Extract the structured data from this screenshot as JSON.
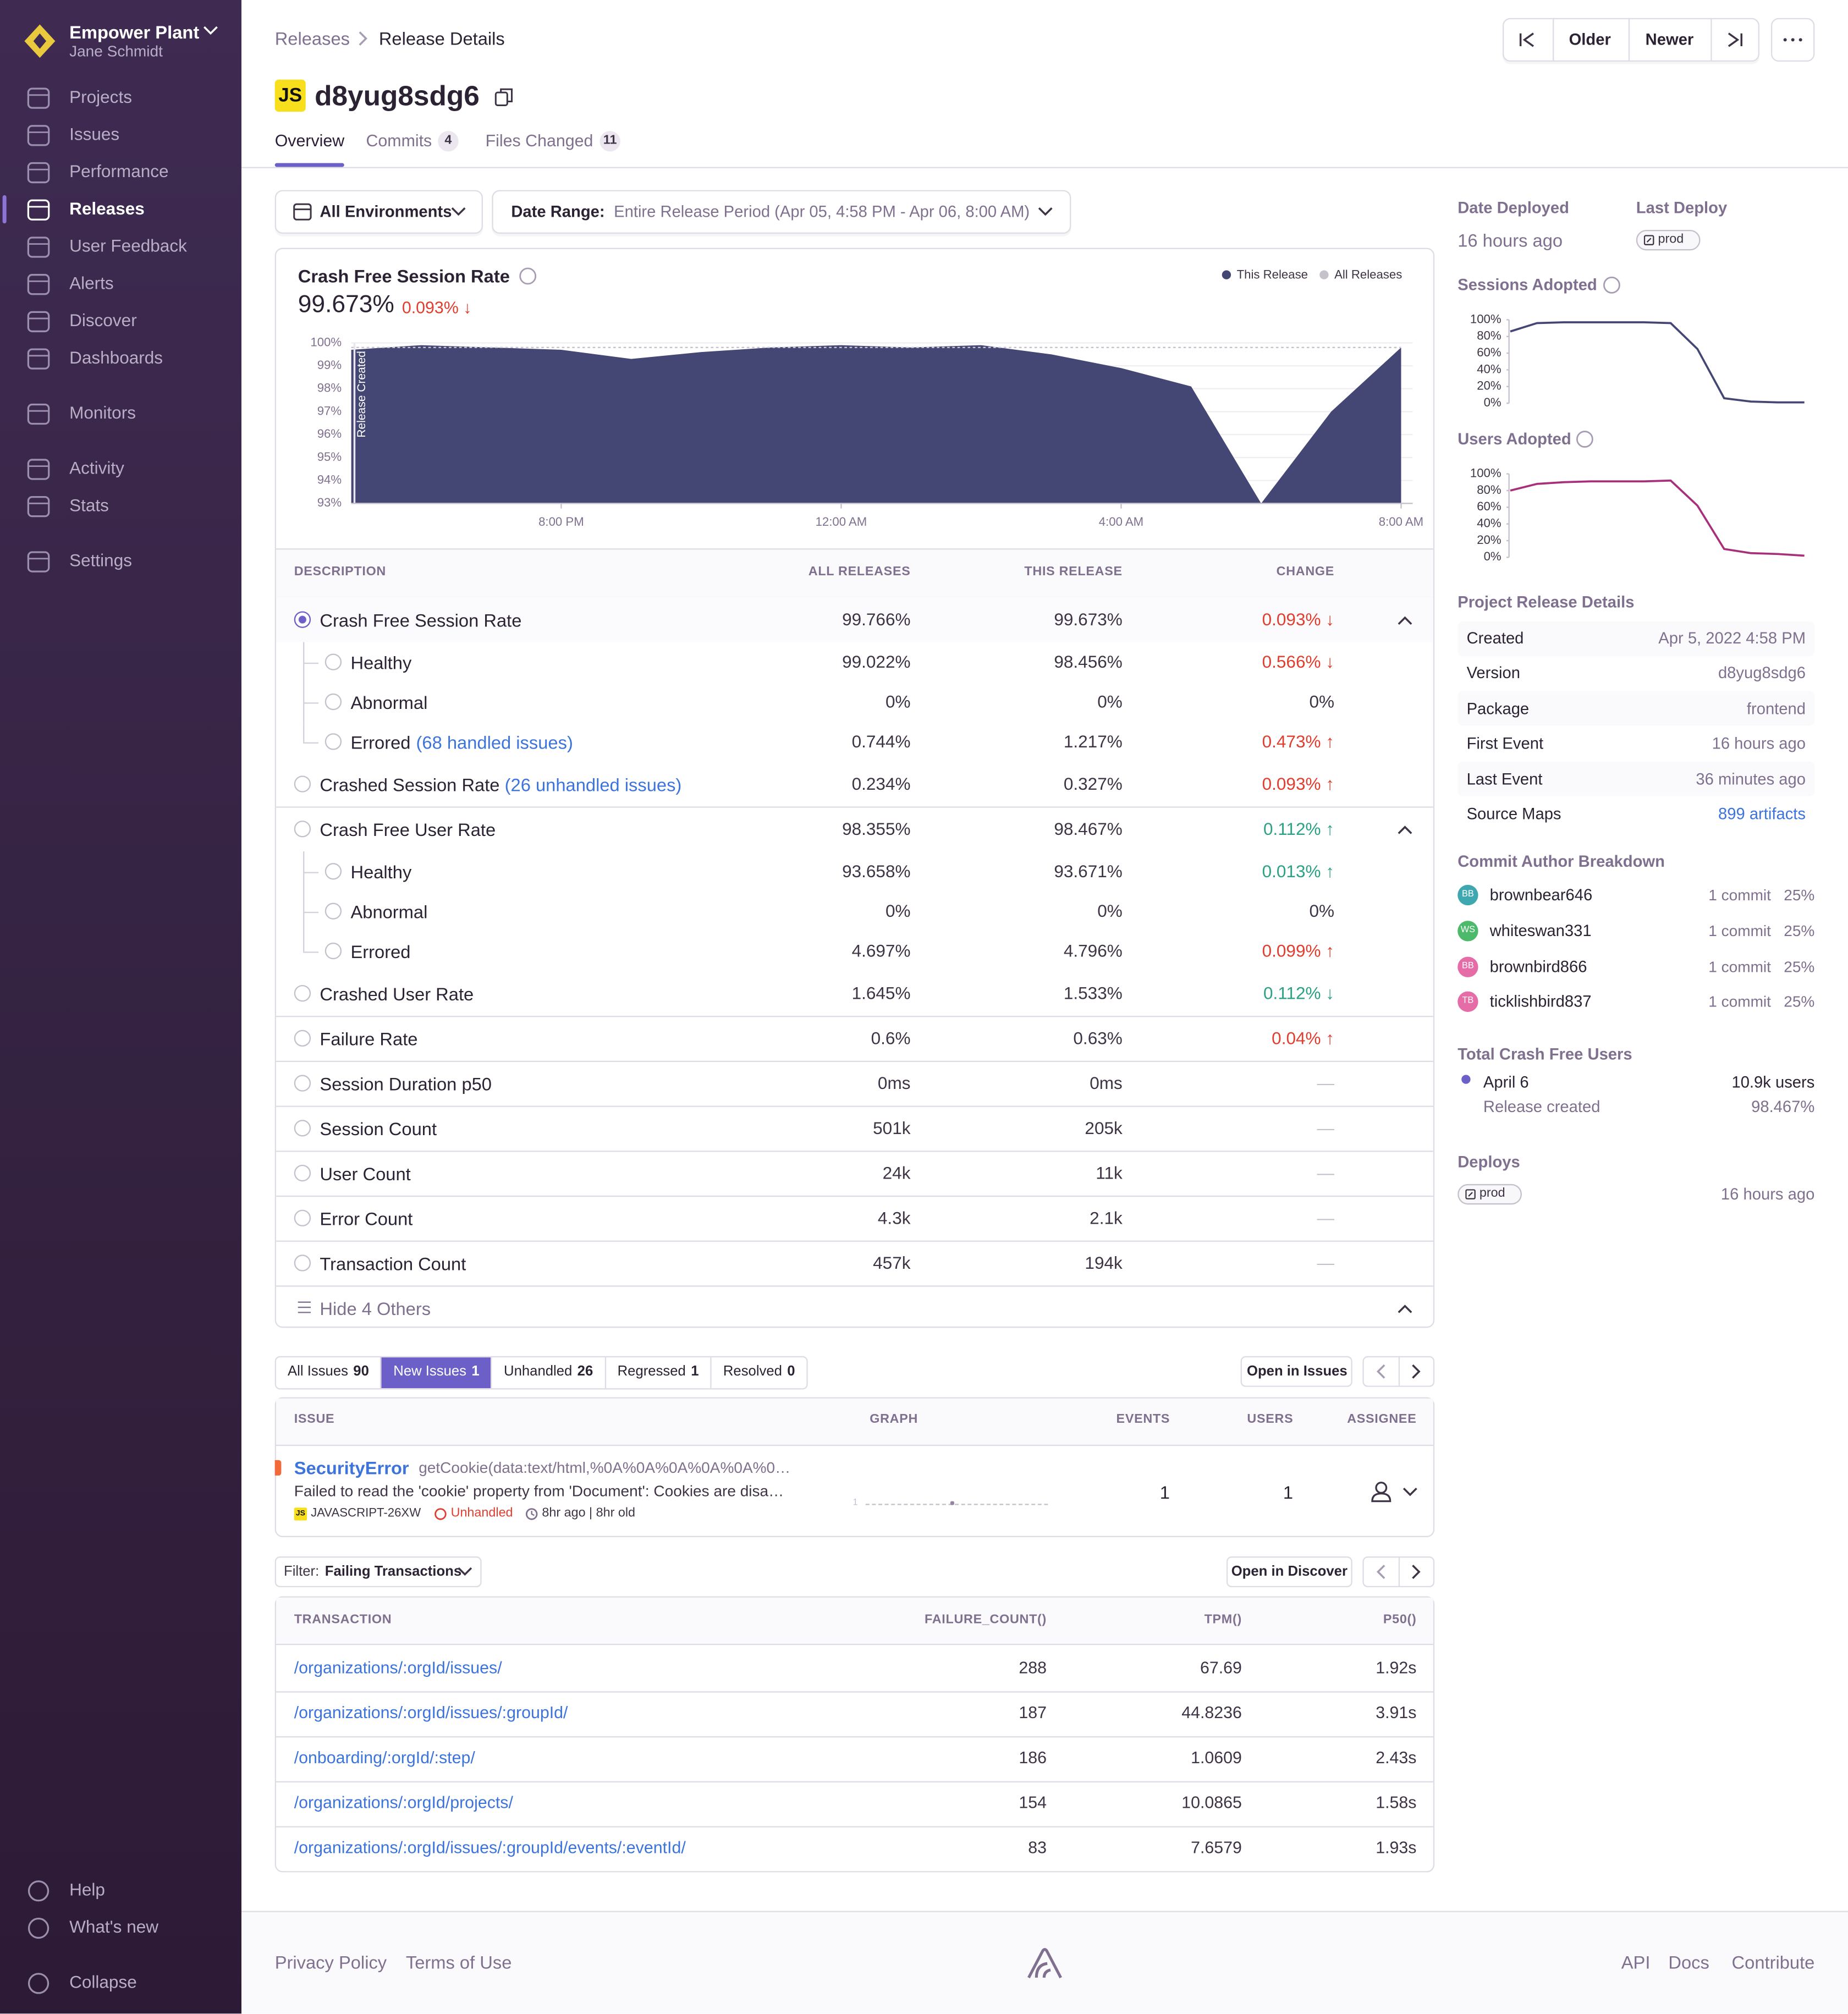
{
  "sidebar": {
    "org": "Empower Plant",
    "user": "Jane Schmidt",
    "nav": [
      {
        "label": "Projects"
      },
      {
        "label": "Issues"
      },
      {
        "label": "Performance"
      },
      {
        "label": "Releases",
        "active": true
      },
      {
        "label": "User Feedback"
      },
      {
        "label": "Alerts"
      },
      {
        "label": "Discover"
      },
      {
        "label": "Dashboards"
      },
      {
        "label": "Monitors"
      },
      {
        "label": "Activity"
      },
      {
        "label": "Stats"
      },
      {
        "label": "Settings"
      }
    ],
    "bottom": [
      "Help",
      "What's new",
      "Collapse"
    ]
  },
  "header": {
    "breadcrumbs": [
      "Releases",
      "Release Details"
    ],
    "nav_buttons": [
      "Older",
      "Newer"
    ],
    "platform": "JS",
    "version": "d8yug8sdg6",
    "tabs": [
      {
        "label": "Overview",
        "active": true
      },
      {
        "label": "Commits",
        "count": "4"
      },
      {
        "label": "Files Changed",
        "count": "11"
      }
    ]
  },
  "filters": {
    "environment": "All Environments",
    "date_label": "Date Range:",
    "date_value": "Entire Release Period (Apr 05, 4:58 PM - Apr 06, 8:00 AM)"
  },
  "chart_data": [
    {
      "type": "area",
      "title": "Crash Free Session Rate",
      "value": "99.673%",
      "change": "0.093% ↓",
      "annotation": "Release Created",
      "x": [
        "5:00 PM",
        "6:00 PM",
        "7:00 PM",
        "8:00 PM",
        "9:00 PM",
        "10:00 PM",
        "11:00 PM",
        "12:00 AM",
        "1:00 AM",
        "2:00 AM",
        "3:00 AM",
        "4:00 AM",
        "5:00 AM",
        "6:00 AM",
        "7:00 AM",
        "8:00 AM"
      ],
      "series": [
        {
          "name": "This Release",
          "color": "#444674",
          "values": [
            99.7,
            99.9,
            99.8,
            99.7,
            99.3,
            99.6,
            99.8,
            99.9,
            99.8,
            99.9,
            99.5,
            98.9,
            98.1,
            93.0,
            97.0,
            99.8
          ]
        },
        {
          "name": "All Releases",
          "color": "#c6c2cc",
          "values": [
            99.8,
            99.8,
            99.8,
            99.8,
            99.8,
            99.8,
            99.8,
            99.8,
            99.8,
            99.8,
            99.8,
            99.8,
            99.8,
            99.8,
            99.8,
            99.8
          ]
        }
      ],
      "ylim": [
        93,
        100
      ],
      "yticks": [
        {
          "value": 93,
          "label": "93%"
        },
        {
          "value": 94,
          "label": "94%"
        },
        {
          "value": 95,
          "label": "95%"
        },
        {
          "value": 96,
          "label": "96%"
        },
        {
          "value": 97,
          "label": "97%"
        },
        {
          "value": 98,
          "label": "98%"
        },
        {
          "value": 99,
          "label": "99%"
        },
        {
          "value": 100,
          "label": "100%"
        }
      ],
      "xticks": [
        "8:00 PM",
        "12:00 AM",
        "4:00 AM",
        "8:00 AM"
      ]
    },
    {
      "type": "line",
      "title": "Sessions Adopted",
      "color": "#444674",
      "values": [
        86,
        96,
        97,
        97,
        97,
        97,
        96,
        65,
        6,
        2,
        1,
        1
      ],
      "ylim": [
        0,
        100
      ],
      "yticks": [
        {
          "value": 0,
          "label": "0%"
        },
        {
          "value": 20,
          "label": "20%"
        },
        {
          "value": 40,
          "label": "40%"
        },
        {
          "value": 60,
          "label": "60%"
        },
        {
          "value": 80,
          "label": "80%"
        },
        {
          "value": 100,
          "label": "100%"
        }
      ]
    },
    {
      "type": "line",
      "title": "Users Adopted",
      "color": "#a8307a",
      "values": [
        80,
        88,
        90,
        91,
        91,
        91,
        92,
        62,
        10,
        5,
        4,
        2
      ],
      "ylim": [
        0,
        100
      ],
      "yticks": [
        {
          "value": 0,
          "label": "0%"
        },
        {
          "value": 20,
          "label": "20%"
        },
        {
          "value": 40,
          "label": "40%"
        },
        {
          "value": 60,
          "label": "60%"
        },
        {
          "value": 80,
          "label": "80%"
        },
        {
          "value": 100,
          "label": "100%"
        }
      ]
    }
  ],
  "metrics": {
    "columns": [
      "Description",
      "All Releases",
      "This Release",
      "Change"
    ],
    "rows": [
      {
        "label": "Crash Free Session Rate",
        "all": "99.766%",
        "this": "99.673%",
        "change": "0.093% ↓",
        "trend": "bad",
        "selected": true,
        "expand": true
      },
      {
        "label": "Healthy",
        "all": "99.022%",
        "this": "98.456%",
        "change": "0.566% ↓",
        "trend": "bad",
        "child": true
      },
      {
        "label": "Abnormal",
        "all": "0%",
        "this": "0%",
        "change": "0%",
        "trend": "neutral",
        "child": true
      },
      {
        "label": "Errored",
        "link": "(68 handled issues)",
        "all": "0.744%",
        "this": "1.217%",
        "change": "0.473% ↑",
        "trend": "bad",
        "child": true,
        "last_child": true
      },
      {
        "label": "Crashed Session Rate",
        "link": "(26 unhandled issues)",
        "all": "0.234%",
        "this": "0.327%",
        "change": "0.093% ↑",
        "trend": "bad"
      },
      {
        "label": "Crash Free User Rate",
        "all": "98.355%",
        "this": "98.467%",
        "change": "0.112% ↑",
        "trend": "good",
        "expand": true,
        "divider": true
      },
      {
        "label": "Healthy",
        "all": "93.658%",
        "this": "93.671%",
        "change": "0.013% ↑",
        "trend": "good",
        "child": true
      },
      {
        "label": "Abnormal",
        "all": "0%",
        "this": "0%",
        "change": "0%",
        "trend": "neutral",
        "child": true
      },
      {
        "label": "Errored",
        "all": "4.697%",
        "this": "4.796%",
        "change": "0.099% ↑",
        "trend": "bad",
        "child": true,
        "last_child": true
      },
      {
        "label": "Crashed User Rate",
        "all": "1.645%",
        "this": "1.533%",
        "change": "0.112% ↓",
        "trend": "good"
      },
      {
        "label": "Failure Rate",
        "all": "0.6%",
        "this": "0.63%",
        "change": "0.04% ↑",
        "trend": "bad",
        "divider": true
      },
      {
        "label": "Session Duration p50",
        "all": "0ms",
        "this": "0ms",
        "change": "—",
        "trend": "none",
        "divider": true
      },
      {
        "label": "Session Count",
        "all": "501k",
        "this": "205k",
        "change": "—",
        "trend": "none",
        "divider": true
      },
      {
        "label": "User Count",
        "all": "24k",
        "this": "11k",
        "change": "—",
        "trend": "none",
        "divider": true
      },
      {
        "label": "Error Count",
        "all": "4.3k",
        "this": "2.1k",
        "change": "—",
        "trend": "none",
        "divider": true
      },
      {
        "label": "Transaction Count",
        "all": "457k",
        "this": "194k",
        "change": "—",
        "trend": "none",
        "divider": true
      }
    ],
    "footer": "Hide 4 Others"
  },
  "issues": {
    "tabs": [
      {
        "label": "All Issues",
        "count": "90"
      },
      {
        "label": "New Issues",
        "count": "1",
        "active": true
      },
      {
        "label": "Unhandled",
        "count": "26"
      },
      {
        "label": "Regressed",
        "count": "1"
      },
      {
        "label": "Resolved",
        "count": "0"
      }
    ],
    "open_button": "Open in Issues",
    "columns": [
      "Issue",
      "Graph",
      "Events",
      "Users",
      "Assignee"
    ],
    "rows": [
      {
        "title": "SecurityError",
        "culprit": "getCookie(data:text/html,%0A%0A%0A%0A%0A%0…",
        "message": "Failed to read the 'cookie' property from 'Document': Cookies are disa…",
        "platform": "JS",
        "short_id": "JAVASCRIPT-26XW",
        "status": "Unhandled",
        "age": "8hr ago | 8hr old",
        "graph_label": "1",
        "events": "1",
        "users": "1"
      }
    ]
  },
  "transactions": {
    "filter_label": "Filter:",
    "filter_value": "Failing Transactions",
    "open_button": "Open in Discover",
    "columns": [
      "Transaction",
      "failure_count()",
      "tpm()",
      "p50()"
    ],
    "rows": [
      [
        "/organizations/:orgId/issues/",
        "288",
        "67.69",
        "1.92s"
      ],
      [
        "/organizations/:orgId/issues/:groupId/",
        "187",
        "44.8236",
        "3.91s"
      ],
      [
        "/onboarding/:orgId/:step/",
        "186",
        "1.0609",
        "2.43s"
      ],
      [
        "/organizations/:orgId/projects/",
        "154",
        "10.0865",
        "1.58s"
      ],
      [
        "/organizations/:orgId/issues/:groupId/events/:eventId/",
        "83",
        "7.6579",
        "1.93s"
      ]
    ]
  },
  "side": {
    "date_deployed_label": "Date Deployed",
    "date_deployed": "16 hours ago",
    "last_deploy_label": "Last Deploy",
    "last_deploy": "prod",
    "details_title": "Project Release Details",
    "details": [
      [
        "Created",
        "Apr 5, 2022 4:58 PM"
      ],
      [
        "Version",
        "d8yug8sdg6"
      ],
      [
        "Package",
        "frontend"
      ],
      [
        "First Event",
        "16 hours ago"
      ],
      [
        "Last Event",
        "36 minutes ago"
      ],
      [
        "Source Maps",
        "899 artifacts"
      ]
    ],
    "authors_title": "Commit Author Breakdown",
    "authors": [
      {
        "initials": "BB",
        "name": "brownbear646",
        "commits": "1 commit",
        "share": "25%",
        "color": "#3fa7b0"
      },
      {
        "initials": "WS",
        "name": "whiteswan331",
        "commits": "1 commit",
        "share": "25%",
        "color": "#4cb96b"
      },
      {
        "initials": "BB",
        "name": "brownbird866",
        "commits": "1 commit",
        "share": "25%",
        "color": "#e66ca8"
      },
      {
        "initials": "TB",
        "name": "ticklishbird837",
        "commits": "1 commit",
        "share": "25%",
        "color": "#e66ca8"
      }
    ],
    "crash_free_title": "Total Crash Free Users",
    "crash_free_date": "April 6",
    "crash_free_users": "10.9k users",
    "crash_free_note": "Release created",
    "crash_free_rate": "98.467%",
    "deploys_title": "Deploys",
    "deploy_env": "prod",
    "deploy_time": "16 hours ago"
  },
  "footer": {
    "left": [
      "Privacy Policy",
      "Terms of Use"
    ],
    "right": [
      "API",
      "Docs",
      "Contribute"
    ]
  }
}
